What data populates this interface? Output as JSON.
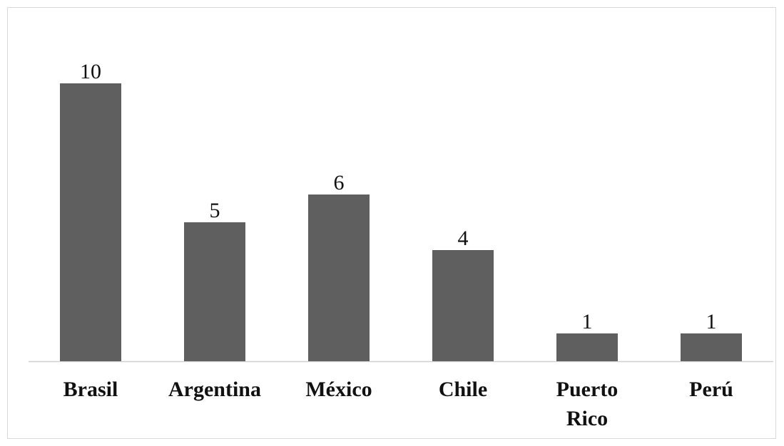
{
  "chart_data": {
    "type": "bar",
    "categories": [
      "Brasil",
      "Argentina",
      "México",
      "Chile",
      "Puerto Rico",
      "Perú"
    ],
    "category_lines": [
      [
        "Brasil"
      ],
      [
        "Argentina"
      ],
      [
        "México"
      ],
      [
        "Chile"
      ],
      [
        "Puerto",
        "Rico"
      ],
      [
        "Perú"
      ]
    ],
    "values": [
      10,
      5,
      6,
      4,
      1,
      1
    ],
    "ylim": [
      0,
      10
    ],
    "grid": false,
    "legend": "none",
    "data_labels": true,
    "colors": {
      "bar": "#5f5f5f",
      "axis": "#d0d0d0",
      "text": "#111111"
    }
  }
}
